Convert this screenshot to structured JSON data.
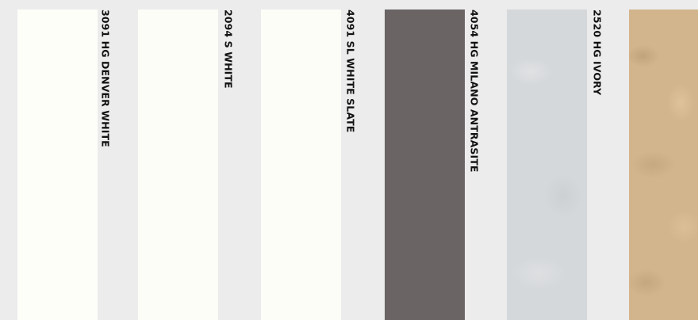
{
  "swatches": [
    {
      "label": "3091 HG DENVER WHITE",
      "color": "#fefef9"
    },
    {
      "label": "2094 S WHITE",
      "color": "#fdfdf7"
    },
    {
      "label": "4091 SL WHITE SLATE",
      "color": "#fdfdf8"
    },
    {
      "label": "4054 HG MILANO ANTRASITE",
      "color": "#6a6464"
    },
    {
      "label": "2520 HG IVORY",
      "color": "#d5d8da"
    },
    {
      "label": "",
      "color": "#d3b58d"
    }
  ],
  "background": "#ececed"
}
